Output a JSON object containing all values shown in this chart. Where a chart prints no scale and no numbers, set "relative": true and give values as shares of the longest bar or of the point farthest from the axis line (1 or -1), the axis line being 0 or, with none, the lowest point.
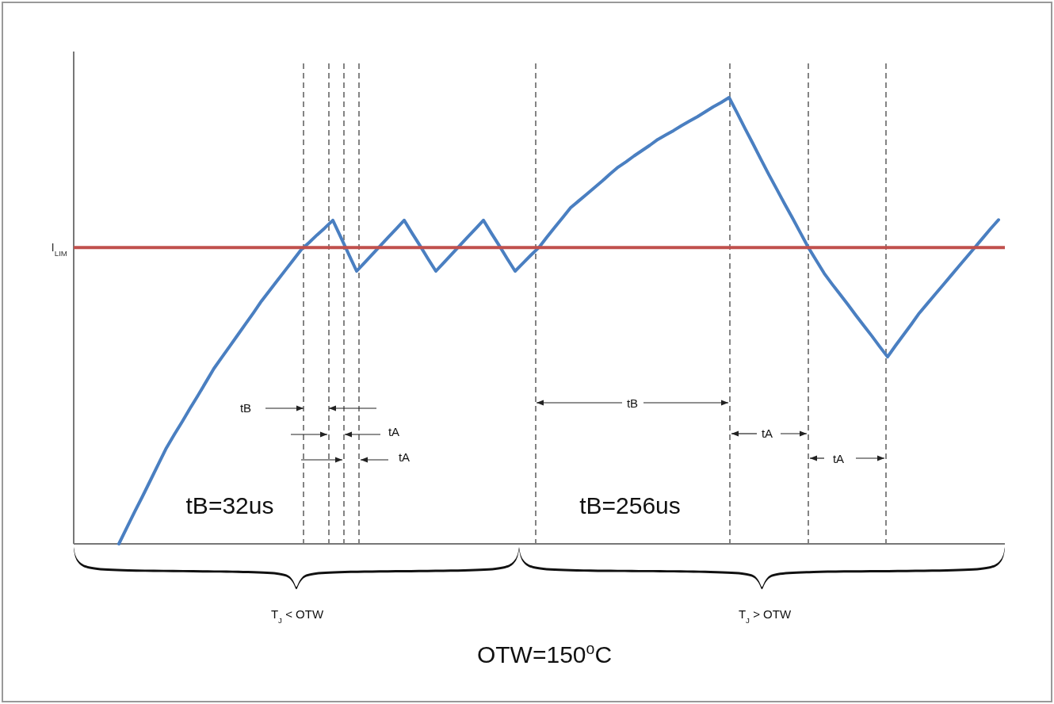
{
  "chart_data": {
    "type": "line",
    "relative": true,
    "marker": "none",
    "line_style": "solid",
    "categories": [
      null,
      null,
      null,
      null,
      null,
      null,
      null,
      null,
      null,
      null,
      null,
      null,
      null,
      null,
      null,
      null,
      null,
      null,
      null,
      null,
      null,
      null,
      null,
      null,
      null,
      null,
      null,
      null,
      null,
      null,
      null,
      null,
      null,
      null,
      null,
      null,
      null,
      null,
      null,
      null,
      null,
      null,
      null,
      null,
      null,
      null,
      null,
      null,
      null,
      null,
      null,
      null,
      null,
      null,
      null,
      null,
      null,
      null,
      null,
      null,
      null,
      null,
      null,
      null,
      null,
      null,
      null,
      null,
      null,
      null,
      null,
      null,
      null,
      null,
      null,
      null,
      null,
      null,
      null,
      null,
      null,
      null,
      null,
      null,
      null,
      null,
      null,
      null,
      null,
      null,
      null,
      null,
      null,
      null,
      null,
      null,
      null,
      null,
      null,
      null,
      null,
      null,
      null,
      null,
      null,
      null,
      null,
      null,
      null,
      null,
      null,
      null
    ],
    "series": [
      {
        "color": "#4a7fc1",
        "values": [
          0,
          0.036,
          0.072,
          0.107,
          0.143,
          0.179,
          0.215,
          0.245,
          0.274,
          0.304,
          0.333,
          0.363,
          0.393,
          0.418,
          0.443,
          0.468,
          0.493,
          0.518,
          0.544,
          0.567,
          0.59,
          0.613,
          0.636,
          0.659,
          0.675,
          0.692,
          0.708,
          0.725,
          0.687,
          0.649,
          0.611,
          0.63,
          0.649,
          0.668,
          0.687,
          0.706,
          0.725,
          0.696,
          0.668,
          0.639,
          0.611,
          0.63,
          0.649,
          0.668,
          0.687,
          0.706,
          0.725,
          0.696,
          0.668,
          0.639,
          0.611,
          0.629,
          0.647,
          0.664,
          0.687,
          0.709,
          0.731,
          0.753,
          0.768,
          0.783,
          0.798,
          0.813,
          0.829,
          0.844,
          0.856,
          0.869,
          0.881,
          0.893,
          0.906,
          0.916,
          0.926,
          0.937,
          0.947,
          0.957,
          0.968,
          0.979,
          0.989,
          1,
          0.966,
          0.931,
          0.897,
          0.862,
          0.828,
          0.795,
          0.762,
          0.73,
          0.697,
          0.664,
          0.635,
          0.606,
          0.582,
          0.559,
          0.536,
          0.512,
          0.489,
          0.466,
          0.442,
          0.419,
          0.444,
          0.468,
          0.492,
          0.517,
          0.538,
          0.559,
          0.58,
          0.601,
          0.622,
          0.643,
          0.664,
          0.685,
          0.706,
          0.726
        ]
      }
    ],
    "ref_lines": [
      {
        "axis": "y",
        "value": 0.664,
        "label": "I$_{LIM}$",
        "color": "#c0504d",
        "line_style": "solid"
      }
    ],
    "annotations": [
      "tB",
      "tA",
      "tA",
      "tB",
      "tA",
      "tA",
      "tB=32us",
      "tB=256us",
      "T$_{J}$ < OTW",
      "T$_{J}$ > OTW",
      "OTW=150$^{o}$C"
    ]
  }
}
